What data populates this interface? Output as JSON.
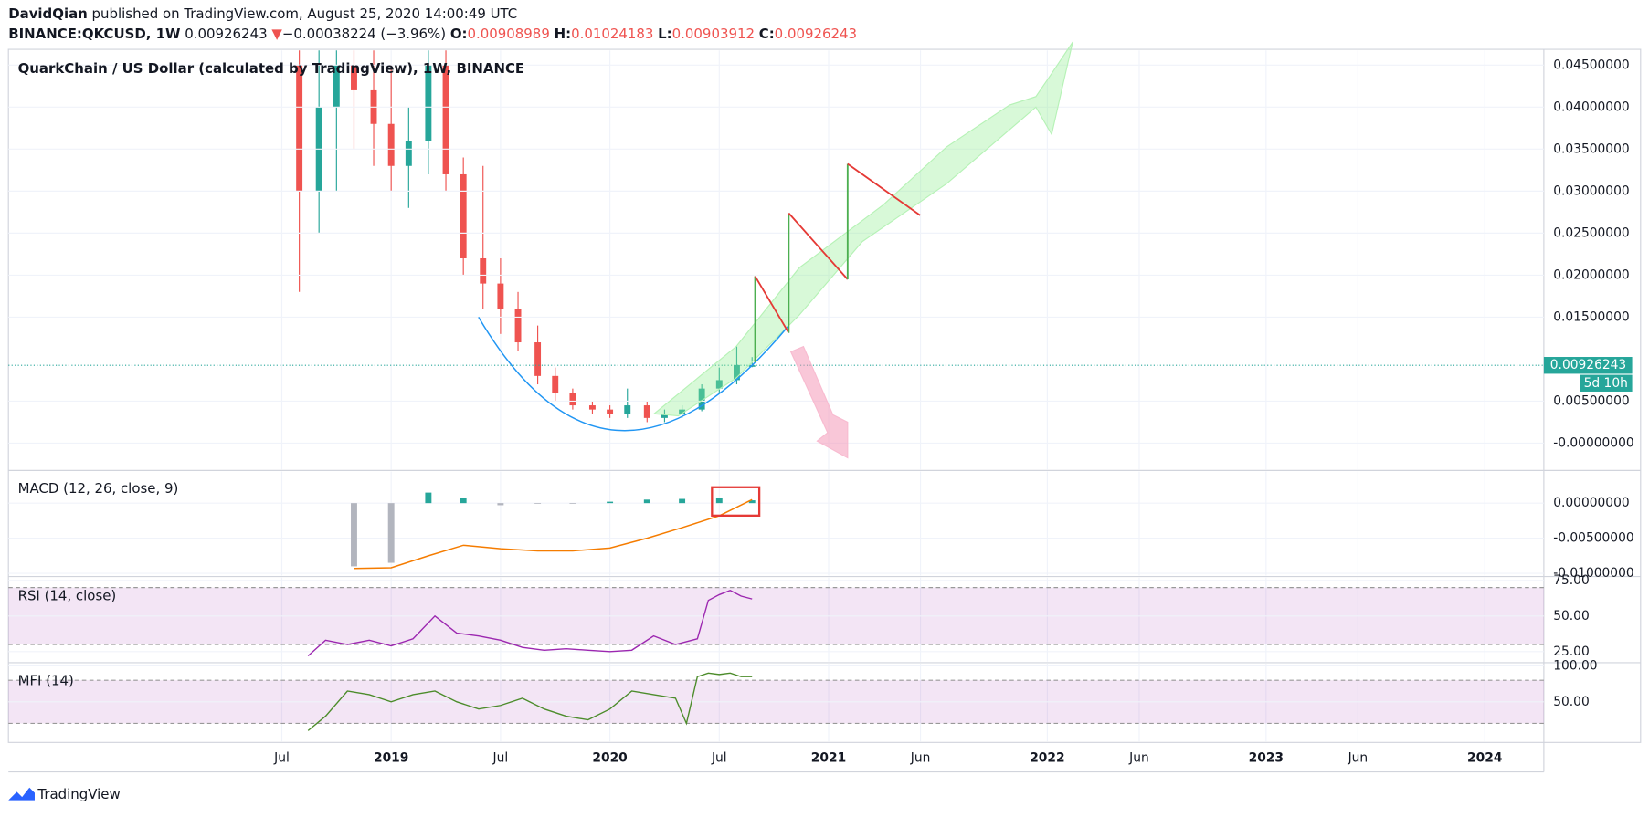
{
  "header": {
    "author": "DavidQian",
    "published": "published on TradingView.com, August 25, 2020 14:00:49 UTC",
    "symbol": "BINANCE:QKCUSD, 1W",
    "last": "0.00926243",
    "arrow": "▼",
    "change": "−0.00038224 (−3.96%)",
    "o_label": "O:",
    "o": "0.00908989",
    "h_label": "H:",
    "h": "0.01024183",
    "l_label": "L:",
    "l": "0.00903912",
    "c_label": "C:",
    "c": "0.00926243"
  },
  "footer": {
    "brand": "TradingView"
  },
  "chart_data": [
    {
      "type": "candlestick",
      "title": "QuarkChain / US Dollar (calculated by TradingView), 1W, BINANCE",
      "x": [
        2018.58,
        2018.67,
        2018.75,
        2018.83,
        2018.92,
        2019.0,
        2019.08,
        2019.17,
        2019.25,
        2019.33,
        2019.42,
        2019.5,
        2019.58,
        2019.67,
        2019.75,
        2019.83,
        2019.92,
        2020.0,
        2020.08,
        2020.17,
        2020.25,
        2020.33,
        2020.42,
        2020.5,
        2020.58,
        2020.65
      ],
      "open": [
        0.045,
        0.03,
        0.04,
        0.045,
        0.042,
        0.038,
        0.033,
        0.036,
        0.045,
        0.032,
        0.022,
        0.019,
        0.016,
        0.012,
        0.008,
        0.006,
        0.0045,
        0.004,
        0.0035,
        0.0045,
        0.003,
        0.0035,
        0.004,
        0.0065,
        0.0075,
        0.00908989
      ],
      "high": [
        0.05,
        0.05,
        0.05,
        0.05,
        0.05,
        0.045,
        0.04,
        0.05,
        0.05,
        0.034,
        0.033,
        0.022,
        0.018,
        0.014,
        0.009,
        0.0065,
        0.005,
        0.0045,
        0.0065,
        0.005,
        0.004,
        0.0045,
        0.007,
        0.009,
        0.0115,
        0.01024183
      ],
      "low": [
        0.018,
        0.025,
        0.03,
        0.035,
        0.033,
        0.03,
        0.028,
        0.032,
        0.03,
        0.02,
        0.016,
        0.013,
        0.011,
        0.007,
        0.005,
        0.004,
        0.0035,
        0.003,
        0.003,
        0.0025,
        0.0025,
        0.003,
        0.0038,
        0.006,
        0.007,
        0.00903912
      ],
      "close": [
        0.03,
        0.04,
        0.045,
        0.042,
        0.038,
        0.033,
        0.036,
        0.045,
        0.032,
        0.022,
        0.019,
        0.016,
        0.012,
        0.008,
        0.006,
        0.0045,
        0.004,
        0.0035,
        0.0045,
        0.003,
        0.0035,
        0.004,
        0.0065,
        0.0075,
        0.0093,
        0.00926243
      ],
      "up_color": "#26a69a",
      "down_color": "#ef5350",
      "last_value": 0.00926243,
      "countdown": "5d 10h",
      "xlim": [
        2017.25,
        2024.27
      ],
      "xticks": [
        {
          "value": 2018.5,
          "label": "Jul"
        },
        {
          "value": 2019,
          "label": "2019"
        },
        {
          "value": 2019.5,
          "label": "Jul"
        },
        {
          "value": 2020,
          "label": "2020"
        },
        {
          "value": 2020.5,
          "label": "Jul"
        },
        {
          "value": 2021,
          "label": "2021"
        },
        {
          "value": 2021.42,
          "label": "Jun"
        },
        {
          "value": 2022,
          "label": "2022"
        },
        {
          "value": 2022.42,
          "label": "Jun"
        },
        {
          "value": 2023,
          "label": "2023"
        },
        {
          "value": 2023.42,
          "label": "Jun"
        },
        {
          "value": 2024,
          "label": "2024"
        }
      ],
      "ylim": [
        -0.003125,
        0.04675
      ],
      "yticks": [
        {
          "value": 0.045,
          "label": "0.04500000"
        },
        {
          "value": 0.04,
          "label": "0.04000000"
        },
        {
          "value": 0.035,
          "label": "0.03500000"
        },
        {
          "value": 0.03,
          "label": "0.03000000"
        },
        {
          "value": 0.025,
          "label": "0.02500000"
        },
        {
          "value": 0.02,
          "label": "0.02000000"
        },
        {
          "value": 0.015,
          "label": "0.01500000"
        },
        {
          "value": 0.005,
          "label": "0.00500000"
        },
        {
          "value": 0,
          "label": "-0.00000000"
        }
      ]
    },
    {
      "type": "macd",
      "title": "MACD (12, 26, close, 9)",
      "x": [
        2018.83,
        2019.0,
        2019.17,
        2019.33,
        2019.5,
        2019.67,
        2019.83,
        2020.0,
        2020.17,
        2020.33,
        2020.5,
        2020.65
      ],
      "histogram": [
        -0.009,
        -0.0085,
        0.0015,
        0.0008,
        -0.0003,
        -0.0001,
        -0.0001,
        0.0002,
        0.0005,
        0.0006,
        0.0008,
        0.0004
      ],
      "signal": [
        -0.0093,
        -0.0092,
        -0.0075,
        -0.006,
        -0.0065,
        -0.0068,
        -0.0068,
        -0.0064,
        -0.005,
        -0.0035,
        -0.0018,
        0.0005
      ],
      "signal_color": "#f57c00",
      "ylim": [
        -0.0103,
        0.0045
      ],
      "yticks": [
        {
          "value": 0,
          "label": "0.00000000"
        },
        {
          "value": -0.005,
          "label": "-0.00500000"
        },
        {
          "value": -0.01,
          "label": "-0.01000000"
        }
      ]
    },
    {
      "type": "line",
      "title": "RSI (14, close)",
      "x": [
        2018.62,
        2018.7,
        2018.8,
        2018.9,
        2019.0,
        2019.1,
        2019.2,
        2019.3,
        2019.4,
        2019.5,
        2019.6,
        2019.7,
        2019.8,
        2019.9,
        2020.0,
        2020.1,
        2020.2,
        2020.3,
        2020.4,
        2020.45,
        2020.5,
        2020.55,
        2020.6,
        2020.65
      ],
      "values": [
        22,
        33,
        30,
        33,
        29,
        34,
        50,
        38,
        36,
        33,
        28,
        26,
        27,
        26,
        25,
        26,
        36,
        30,
        34,
        61,
        65,
        68,
        64,
        62
      ],
      "color": "#9c27b0",
      "band": [
        30,
        70
      ],
      "ylim": [
        18,
        77
      ],
      "yticks": [
        {
          "value": 75,
          "label": "75.00"
        },
        {
          "value": 50,
          "label": "50.00"
        },
        {
          "value": 25,
          "label": "25.00"
        }
      ]
    },
    {
      "type": "line",
      "title": "MFI (14)",
      "x": [
        2018.62,
        2018.7,
        2018.8,
        2018.9,
        2019.0,
        2019.1,
        2019.2,
        2019.3,
        2019.4,
        2019.5,
        2019.6,
        2019.7,
        2019.8,
        2019.9,
        2020.0,
        2020.1,
        2020.2,
        2020.3,
        2020.35,
        2020.4,
        2020.45,
        2020.5,
        2020.55,
        2020.6,
        2020.65
      ],
      "values": [
        10,
        30,
        65,
        60,
        50,
        60,
        65,
        50,
        40,
        45,
        55,
        40,
        30,
        25,
        40,
        65,
        60,
        55,
        20,
        85,
        90,
        88,
        90,
        85,
        85
      ],
      "color": "#4c8c2b",
      "band": [
        20,
        80
      ],
      "ylim": [
        -5,
        103
      ],
      "yticks": [
        {
          "value": 100,
          "label": "100.00"
        },
        {
          "value": 50,
          "label": "50.00"
        }
      ]
    }
  ]
}
